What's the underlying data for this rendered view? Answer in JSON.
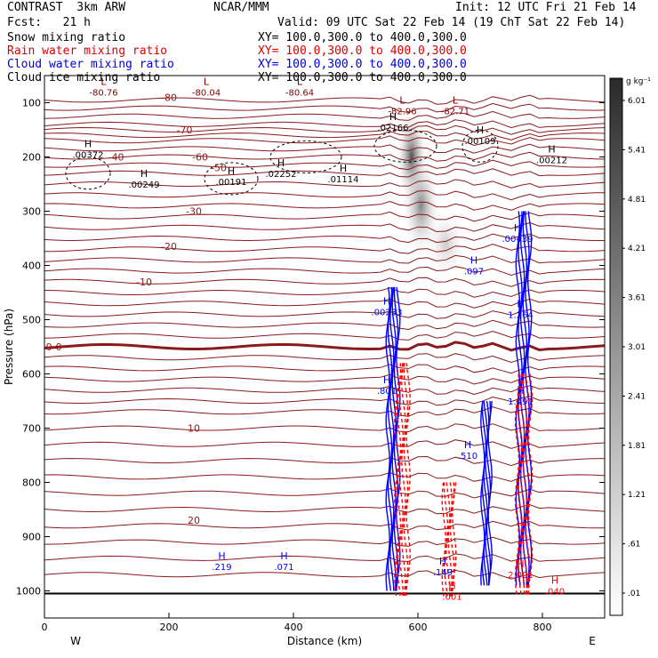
{
  "header": {
    "model": "CONTRAST  3km ARW",
    "org": "NCAR/MMM",
    "init": "Init: 12 UTC Fri 21 Feb 14",
    "fcst": "Fcst:   21 h",
    "valid": "Valid: 09 UTC Sat 22 Feb 14 (19 ChT Sat 22 Feb 14)",
    "fields": [
      {
        "name": "Snow mixing ratio",
        "xy": "XY= 100.0,300.0 to 400.0,300.0",
        "color": "#000000"
      },
      {
        "name": "Rain water mixing ratio",
        "xy": "XY= 100.0,300.0 to 400.0,300.0",
        "color": "#ff0000"
      },
      {
        "name": "Cloud water mixing ratio",
        "xy": "XY= 100.0,300.0 to 400.0,300.0",
        "color": "#0000ff"
      },
      {
        "name": "Cloud ice mixing ratio",
        "xy": "XY= 100.0,300.0 to 400.0,300.0",
        "color": "#000000"
      }
    ]
  },
  "chart_data": {
    "type": "contour-cross-section",
    "xlabel": "Distance (km)",
    "ylabel": "Pressure (hPa)",
    "xlim": [
      0,
      900
    ],
    "ylim": [
      1050,
      50
    ],
    "x_ticks": [
      0,
      200,
      400,
      600,
      800
    ],
    "y_ticks": [
      100,
      200,
      300,
      400,
      500,
      600,
      700,
      800,
      900,
      1000
    ],
    "endpoints": {
      "left": "W",
      "right": "E"
    },
    "colorbar": {
      "units": "g kg⁻¹",
      "ticks": [
        ".01",
        ".61",
        "1.21",
        "1.81",
        "2.41",
        "3.01",
        "3.61",
        "4.21",
        "4.81",
        "5.41",
        "6.01"
      ]
    },
    "temperature_contours": [
      {
        "value": -80,
        "label": "-80",
        "label_x": 200,
        "label_p": 90
      },
      {
        "value": -70,
        "label": "-70",
        "label_x": 225,
        "label_p": 150
      },
      {
        "value": -60,
        "label": "-60",
        "label_x": 250,
        "label_p": 200
      },
      {
        "value": -50,
        "label": "-50",
        "label_x": 280,
        "label_p": 220
      },
      {
        "value": -40,
        "label": "-40",
        "label_x": 115,
        "label_p": 200
      },
      {
        "value": -30,
        "label": "-30",
        "label_x": 240,
        "label_p": 300
      },
      {
        "value": -20,
        "label": "-20",
        "label_x": 200,
        "label_p": 365
      },
      {
        "value": -10,
        "label": "-10",
        "label_x": 160,
        "label_p": 430
      },
      {
        "value": 0,
        "label": "0-0",
        "label_x": 15,
        "label_p": 550
      },
      {
        "value": 10,
        "label": "10",
        "label_x": 240,
        "label_p": 700
      },
      {
        "value": 20,
        "label": "20",
        "label_x": 240,
        "label_p": 870
      }
    ],
    "extrema": [
      {
        "type": "H",
        "value": ".00372",
        "x": 70,
        "p": 195,
        "color": "#000000"
      },
      {
        "type": "H",
        "value": ".00249",
        "x": 160,
        "p": 250,
        "color": "#000000"
      },
      {
        "type": "H",
        "value": ".00191",
        "x": 300,
        "p": 245,
        "color": "#000000"
      },
      {
        "type": "H",
        "value": ".02252",
        "x": 380,
        "p": 230,
        "color": "#000000"
      },
      {
        "type": "H",
        "value": ".01114",
        "x": 480,
        "p": 240,
        "color": "#000000"
      },
      {
        "type": "H",
        "value": ".02166",
        "x": 560,
        "p": 145,
        "color": "#000000"
      },
      {
        "type": "H",
        "value": ".00109",
        "x": 700,
        "p": 170,
        "color": "#000000"
      },
      {
        "type": "H",
        "value": ".00212",
        "x": 815,
        "p": 205,
        "color": "#000000"
      },
      {
        "type": "L",
        "value": "-80.76",
        "x": 95,
        "p": 80,
        "color": "#800000"
      },
      {
        "type": "L",
        "value": "-80.04",
        "x": 260,
        "p": 80,
        "color": "#800000"
      },
      {
        "type": "L",
        "value": "-80.64",
        "x": 410,
        "p": 80,
        "color": "#800000"
      },
      {
        "type": "L",
        "value": "-82.96",
        "x": 575,
        "p": 115,
        "color": "#800000"
      },
      {
        "type": "L",
        "value": "-82.71",
        "x": 660,
        "p": 115,
        "color": "#800000"
      },
      {
        "type": "H",
        "value": ".00439",
        "x": 760,
        "p": 350,
        "color": "#0000ff"
      },
      {
        "type": "H",
        "value": ".097",
        "x": 690,
        "p": 410,
        "color": "#0000ff"
      },
      {
        "type": "H",
        "value": ".00233",
        "x": 550,
        "p": 485,
        "color": "#0000ff"
      },
      {
        "type": "H",
        "value": "1.264",
        "x": 765,
        "p": 490,
        "color": "#0000ff"
      },
      {
        "type": "H",
        "value": ".801",
        "x": 550,
        "p": 630,
        "color": "#0000ff"
      },
      {
        "type": "H",
        "value": "1.491",
        "x": 765,
        "p": 650,
        "color": "#0000ff"
      },
      {
        "type": "H",
        "value": ".510",
        "x": 680,
        "p": 750,
        "color": "#0000ff"
      },
      {
        "type": "H",
        "value": ".219",
        "x": 285,
        "p": 955,
        "color": "#0000ff"
      },
      {
        "type": "H",
        "value": ".071",
        "x": 385,
        "p": 955,
        "color": "#0000ff"
      },
      {
        "type": "H",
        "value": ".149",
        "x": 640,
        "p": 965,
        "color": "#0000ff"
      },
      {
        "type": "H",
        "value": "2.001",
        "x": 765,
        "p": 970,
        "color": "#ff0000"
      },
      {
        "type": "H",
        "value": ".040",
        "x": 820,
        "p": 1000,
        "color": "#ff0000"
      },
      {
        "type": "H",
        "value": ".001",
        "x": 655,
        "p": 1010,
        "color": "#ff0000"
      }
    ]
  }
}
